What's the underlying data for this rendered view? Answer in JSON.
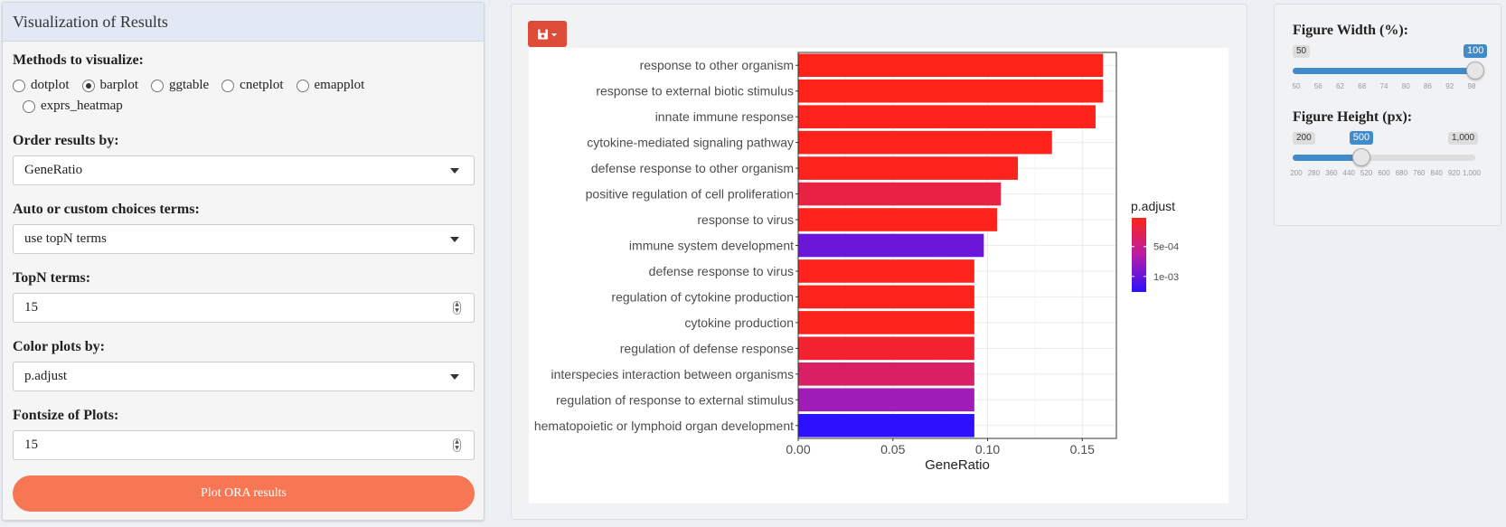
{
  "left": {
    "title": "Visualization of Results",
    "methods_label": "Methods to visualize:",
    "methods": [
      "dotplot",
      "barplot",
      "ggtable",
      "cnetplot",
      "emapplot",
      "exprs_heatmap"
    ],
    "method_selected": "barplot",
    "order_label": "Order results by:",
    "order_value": "GeneRatio",
    "choices_label": "Auto or custom choices terms:",
    "choices_value": "use topN terms",
    "topn_label": "TopN terms:",
    "topn_value": "15",
    "color_label": "Color plots by:",
    "color_value": "p.adjust",
    "fontsize_label": "Fontsize of Plots:",
    "fontsize_value": "15",
    "plot_button": "Plot ORA results"
  },
  "center": {
    "save_icon": "save-icon"
  },
  "right": {
    "width_label": "Figure Width (%):",
    "width_min": "50",
    "width_value": "100",
    "width_ticks": [
      "50",
      "56",
      "62",
      "68",
      "74",
      "80",
      "86",
      "92",
      "98"
    ],
    "width_fraction": 1.0,
    "height_label": "Figure Height (px):",
    "height_min": "200",
    "height_value": "500",
    "height_max": "1,000",
    "height_ticks": [
      "200",
      "280",
      "360",
      "440",
      "520",
      "600",
      "680",
      "760",
      "840",
      "920",
      "1,000"
    ],
    "height_fraction": 0.375
  },
  "chart_data": {
    "type": "bar",
    "orientation": "horizontal",
    "xlabel": "GeneRatio",
    "ylabel": "",
    "xlim": [
      0,
      0.168
    ],
    "xticks": [
      "0.00",
      "0.05",
      "0.10",
      "0.15"
    ],
    "xtick_values": [
      0,
      0.05,
      0.1,
      0.15
    ],
    "legend_title": "p.adjust",
    "legend_labels": [
      "5e-04",
      "1e-03"
    ],
    "legend_values": [
      0.0005,
      0.001
    ],
    "legend_range": [
      2e-05,
      0.00126
    ],
    "legend_position": "right",
    "colors": {
      "low": "#ff2316",
      "mid": "#b81ea8",
      "high": "#2b10ff"
    },
    "categories": [
      "response to other organism",
      "response to external biotic stimulus",
      "innate immune response",
      "cytokine-mediated signaling pathway",
      "defense response to other organism",
      "positive regulation of cell proliferation",
      "response to virus",
      "immune system development",
      "defense response to virus",
      "regulation of cytokine production",
      "cytokine production",
      "regulation of defense response",
      "interspecies interaction between organisms",
      "regulation of response to external stimulus",
      "hematopoietic or lymphoid organ development"
    ],
    "values": [
      0.161,
      0.161,
      0.157,
      0.134,
      0.116,
      0.107,
      0.105,
      0.098,
      0.093,
      0.093,
      0.093,
      0.093,
      0.093,
      0.093,
      0.093
    ],
    "padjust": [
      3e-05,
      3e-05,
      4e-05,
      4e-05,
      5e-05,
      0.00021,
      4e-05,
      0.00098,
      4e-05,
      5e-05,
      5e-05,
      0.00013,
      0.00035,
      0.00075,
      0.00125
    ]
  }
}
